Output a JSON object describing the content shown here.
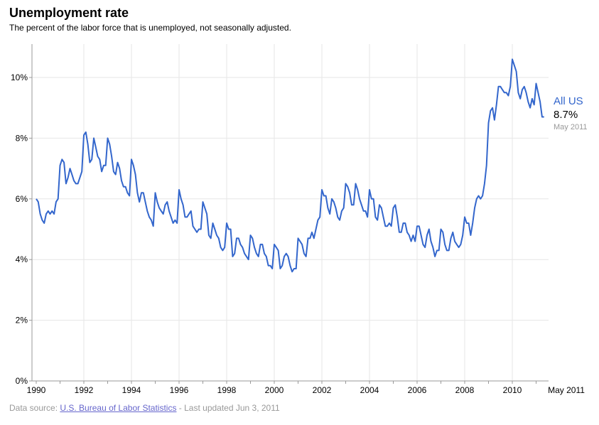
{
  "header": {
    "title": "Unemployment rate",
    "subtitle": "The percent of the labor force that is unemployed, not seasonally adjusted."
  },
  "footer": {
    "source_prefix": "Data source: ",
    "source_link": "U.S. Bureau of Labor Statistics",
    "updated": " - Last updated Jun 3, 2011"
  },
  "chart_data": {
    "type": "line",
    "title": "Unemployment rate",
    "xlabel": "",
    "ylabel": "",
    "x_start": "1990-01",
    "x_end": "2011-05",
    "frequency": "monthly",
    "xlim": [
      1990,
      2011.4
    ],
    "ylim": [
      0,
      11
    ],
    "y_ticks": [
      "0%",
      "2%",
      "4%",
      "6%",
      "8%",
      "10%"
    ],
    "x_ticks": [
      "1990",
      "1992",
      "1994",
      "1996",
      "1998",
      "2000",
      "2002",
      "2004",
      "2006",
      "2008",
      "2010",
      "May 2011"
    ],
    "grid": true,
    "colors": {
      "line": "#3366cc",
      "grid": "#e6e6e6",
      "axis": "#999999"
    },
    "series": [
      {
        "name": "All US",
        "last_value_label": "8.7%",
        "last_date_label": "May 2011",
        "values": [
          6.0,
          5.9,
          5.5,
          5.3,
          5.2,
          5.5,
          5.6,
          5.5,
          5.6,
          5.5,
          5.9,
          6.0,
          7.1,
          7.3,
          7.2,
          6.5,
          6.7,
          7.0,
          6.8,
          6.6,
          6.5,
          6.5,
          6.7,
          6.9,
          8.1,
          8.2,
          7.8,
          7.2,
          7.3,
          8.0,
          7.7,
          7.4,
          7.3,
          6.9,
          7.1,
          7.1,
          8.0,
          7.8,
          7.4,
          6.9,
          6.8,
          7.2,
          7.0,
          6.6,
          6.4,
          6.4,
          6.2,
          6.1,
          7.3,
          7.1,
          6.8,
          6.2,
          5.9,
          6.2,
          6.2,
          5.9,
          5.6,
          5.4,
          5.3,
          5.1,
          6.2,
          5.9,
          5.7,
          5.6,
          5.5,
          5.8,
          5.9,
          5.6,
          5.4,
          5.2,
          5.3,
          5.2,
          6.3,
          6.0,
          5.8,
          5.4,
          5.4,
          5.5,
          5.6,
          5.1,
          5.0,
          4.9,
          5.0,
          5.0,
          5.9,
          5.7,
          5.5,
          4.8,
          4.7,
          5.2,
          5.0,
          4.8,
          4.7,
          4.4,
          4.3,
          4.4,
          5.2,
          5.0,
          5.0,
          4.1,
          4.2,
          4.7,
          4.7,
          4.5,
          4.4,
          4.2,
          4.1,
          4.0,
          4.8,
          4.7,
          4.4,
          4.2,
          4.1,
          4.5,
          4.5,
          4.2,
          4.1,
          3.8,
          3.8,
          3.7,
          4.5,
          4.4,
          4.3,
          3.7,
          3.8,
          4.1,
          4.2,
          4.1,
          3.8,
          3.6,
          3.7,
          3.7,
          4.7,
          4.6,
          4.5,
          4.2,
          4.1,
          4.7,
          4.7,
          4.9,
          4.7,
          5.0,
          5.3,
          5.4,
          6.3,
          6.1,
          6.1,
          5.7,
          5.5,
          6.0,
          5.9,
          5.7,
          5.4,
          5.3,
          5.6,
          5.7,
          6.5,
          6.4,
          6.2,
          5.8,
          5.8,
          6.5,
          6.3,
          6.0,
          5.8,
          5.6,
          5.6,
          5.4,
          6.3,
          6.0,
          6.0,
          5.4,
          5.3,
          5.8,
          5.7,
          5.4,
          5.1,
          5.1,
          5.2,
          5.1,
          5.7,
          5.8,
          5.4,
          4.9,
          4.9,
          5.2,
          5.2,
          4.9,
          4.8,
          4.6,
          4.8,
          4.6,
          5.1,
          5.1,
          4.8,
          4.5,
          4.4,
          4.8,
          5.0,
          4.6,
          4.4,
          4.1,
          4.3,
          4.3,
          5.0,
          4.9,
          4.5,
          4.3,
          4.3,
          4.7,
          4.9,
          4.6,
          4.5,
          4.4,
          4.5,
          4.8,
          5.4,
          5.2,
          5.2,
          4.8,
          5.2,
          5.7,
          6.0,
          6.1,
          6.0,
          6.1,
          6.5,
          7.1,
          8.5,
          8.9,
          9.0,
          8.6,
          9.1,
          9.7,
          9.7,
          9.6,
          9.5,
          9.5,
          9.4,
          9.7,
          10.6,
          10.4,
          10.2,
          9.5,
          9.3,
          9.6,
          9.7,
          9.5,
          9.2,
          9.0,
          9.3,
          9.1,
          9.8,
          9.5,
          9.2,
          8.7,
          8.7
        ]
      }
    ]
  }
}
